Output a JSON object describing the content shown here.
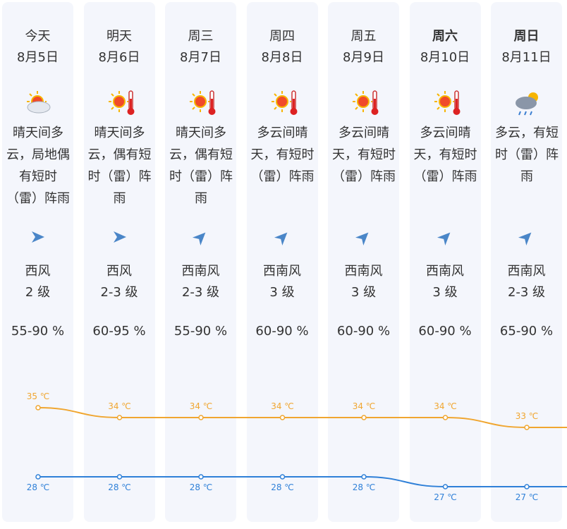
{
  "days": [
    {
      "weekday": "今天",
      "date": "8月5日",
      "weather": "晴天间多云，局地偶有短时（雷）阵雨",
      "wind": "西风",
      "wind_level": "2 级",
      "humidity": "55-90 %"
    },
    {
      "weekday": "明天",
      "date": "8月6日",
      "weather": "晴天间多云，偶有短时（雷）阵雨",
      "wind": "西风",
      "wind_level": "2-3 级",
      "humidity": "60-95 %"
    },
    {
      "weekday": "周三",
      "date": "8月7日",
      "weather": "晴天间多云，偶有短时（雷）阵雨",
      "wind": "西南风",
      "wind_level": "2-3 级",
      "humidity": "55-90 %"
    },
    {
      "weekday": "周四",
      "date": "8月8日",
      "weather": "多云间晴天，有短时（雷）阵雨",
      "wind": "西南风",
      "wind_level": "3 级",
      "humidity": "60-90 %"
    },
    {
      "weekday": "周五",
      "date": "8月9日",
      "weather": "多云间晴天，有短时（雷）阵雨",
      "wind": "西南风",
      "wind_level": "3 级",
      "humidity": "60-90 %"
    },
    {
      "weekday": "周六",
      "date": "8月10日",
      "weather": "多云间晴天，有短时（雷）阵雨",
      "wind": "西南风",
      "wind_level": "3 级",
      "humidity": "60-90 %"
    },
    {
      "weekday": "周日",
      "date": "8月11日",
      "weather": "多云，有短时（雷）阵雨",
      "wind": "西南风",
      "wind_level": "2-3 级",
      "humidity": "65-90 %"
    }
  ],
  "chart_data": {
    "type": "line",
    "series": [
      {
        "color": "#f0a630",
        "values": [
          35,
          34,
          34,
          34,
          34,
          34,
          33
        ],
        "value_labels": [
          "35 ℃",
          "34 ℃",
          "34 ℃",
          "34 ℃",
          "34 ℃",
          "34 ℃",
          "33 ℃"
        ]
      },
      {
        "color": "#2f80d8",
        "values": [
          28,
          28,
          28,
          28,
          28,
          27,
          27
        ],
        "value_labels": [
          "28 ℃",
          "28 ℃",
          "28 ℃",
          "28 ℃",
          "28 ℃",
          "27 ℃",
          "27 ℃"
        ]
      }
    ]
  }
}
